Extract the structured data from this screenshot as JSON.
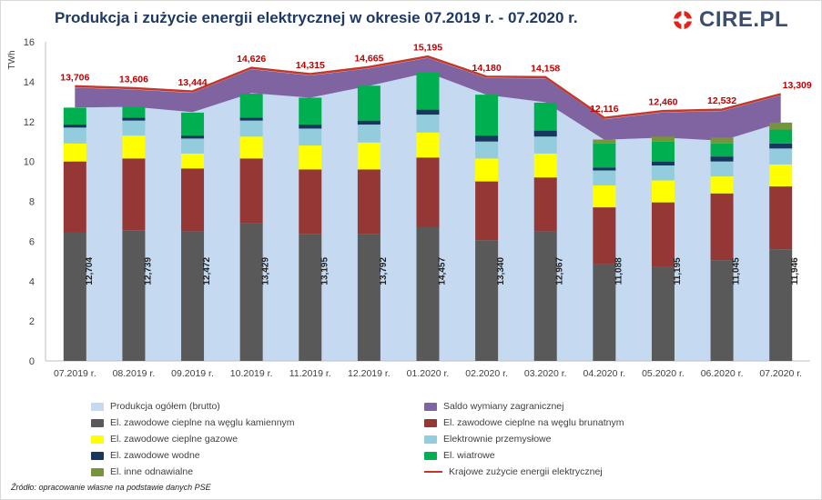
{
  "header": {
    "title": "Produkcja i zużycie energii elektrycznej w okresie 07.2019 r. - 07.2020 r.",
    "logo_text": "CIRE.PL"
  },
  "source_note": "Źródło: opracowanie własne na podstawie danych PSE",
  "colors": {
    "produkcja": "#c5d9f1",
    "saldo": "#8064a2",
    "kamienny": "#595959",
    "brunatny": "#953735",
    "gazowe": "#ffff00",
    "przemyslowe": "#93cddd",
    "wodne": "#17375e",
    "wiatrowe": "#00b050",
    "inne": "#77933c",
    "krajowe": "#c0392b"
  },
  "chart_data": {
    "type": "bar",
    "ylabel": "TWh",
    "ylim": [
      0,
      16
    ],
    "yticks": [
      "0",
      "2",
      "4",
      "6",
      "8",
      "10",
      "12",
      "14",
      "16"
    ],
    "categories": [
      "07.2019 r.",
      "08.2019 r.",
      "09.2019 r.",
      "10.2019 r.",
      "11.2019 r.",
      "12.2019 r.",
      "01.2020 r.",
      "02.2020 r.",
      "03.2020 r.",
      "04.2020 r.",
      "05.2020 r.",
      "06.2020 r.",
      "07.2020 r."
    ],
    "series": [
      {
        "name": "Produkcja ogółem (brutto)",
        "key": "produkcja",
        "kind": "area",
        "values": [
          12.704,
          12.739,
          12.472,
          13.429,
          13.195,
          13.792,
          14.457,
          13.34,
          12.967,
          11.088,
          11.195,
          11.045,
          11.946
        ],
        "labels": [
          "12,704",
          "12,739",
          "12,472",
          "13,429",
          "13,195",
          "13,792",
          "14,457",
          "13,340",
          "12,967",
          "11,088",
          "11,195",
          "11,045",
          "11,946"
        ]
      },
      {
        "name": "Saldo wymiany zagranicznej",
        "key": "saldo",
        "kind": "area-band"
      },
      {
        "name": "El. zawodowe cieplne na węglu kamiennym",
        "key": "kamienny",
        "kind": "bar",
        "values": [
          6.45,
          6.55,
          6.5,
          6.9,
          6.35,
          6.35,
          6.7,
          6.05,
          6.5,
          4.85,
          4.7,
          5.05,
          5.6
        ]
      },
      {
        "name": "El. zawodowe cieplne na węglu brunatnym",
        "key": "brunatny",
        "kind": "bar",
        "values": [
          3.55,
          3.6,
          3.15,
          3.25,
          3.25,
          3.25,
          3.5,
          2.95,
          2.7,
          2.85,
          3.25,
          3.35,
          3.15
        ]
      },
      {
        "name": "El. zawodowe cieplne gazowe",
        "key": "gazowe",
        "kind": "bar",
        "values": [
          0.9,
          1.15,
          0.75,
          1.1,
          1.2,
          1.35,
          1.25,
          1.15,
          1.2,
          1.1,
          1.1,
          0.85,
          1.1
        ]
      },
      {
        "name": "Elektrownie przemysłowe",
        "key": "przemyslowe",
        "kind": "bar",
        "values": [
          0.8,
          0.75,
          0.75,
          0.8,
          0.85,
          0.9,
          0.9,
          0.85,
          0.85,
          0.75,
          0.75,
          0.75,
          0.8
        ]
      },
      {
        "name": "El. zawodowe wodne",
        "key": "wodne",
        "kind": "bar",
        "values": [
          0.15,
          0.15,
          0.15,
          0.15,
          0.2,
          0.2,
          0.25,
          0.3,
          0.3,
          0.15,
          0.2,
          0.25,
          0.25
        ]
      },
      {
        "name": "El. wiatrowe",
        "key": "wiatrowe",
        "kind": "bar",
        "values": [
          0.85,
          0.55,
          1.15,
          1.2,
          1.35,
          1.75,
          1.85,
          2.05,
          1.4,
          1.2,
          1.0,
          0.65,
          0.7
        ]
      },
      {
        "name": "El. inne odnawialne",
        "key": "inne",
        "kind": "bar",
        "values": [
          0.0,
          0.0,
          0.0,
          0.0,
          0.0,
          0.0,
          0.0,
          0.0,
          0.0,
          0.2,
          0.25,
          0.3,
          0.35
        ]
      },
      {
        "name": "Krajowe zużycie energii elektrycznej",
        "key": "krajowe",
        "kind": "line",
        "values": [
          13.706,
          13.606,
          13.444,
          14.626,
          14.315,
          14.665,
          15.195,
          14.18,
          14.158,
          12.116,
          12.46,
          12.532,
          13.309
        ],
        "labels": [
          "13,706",
          "13,606",
          "13,444",
          "14,626",
          "14,315",
          "14,665",
          "15,195",
          "14,180",
          "14,158",
          "12,116",
          "12,460",
          "12,532",
          "13,309"
        ]
      }
    ],
    "grid": false,
    "legend_position": "bottom"
  }
}
